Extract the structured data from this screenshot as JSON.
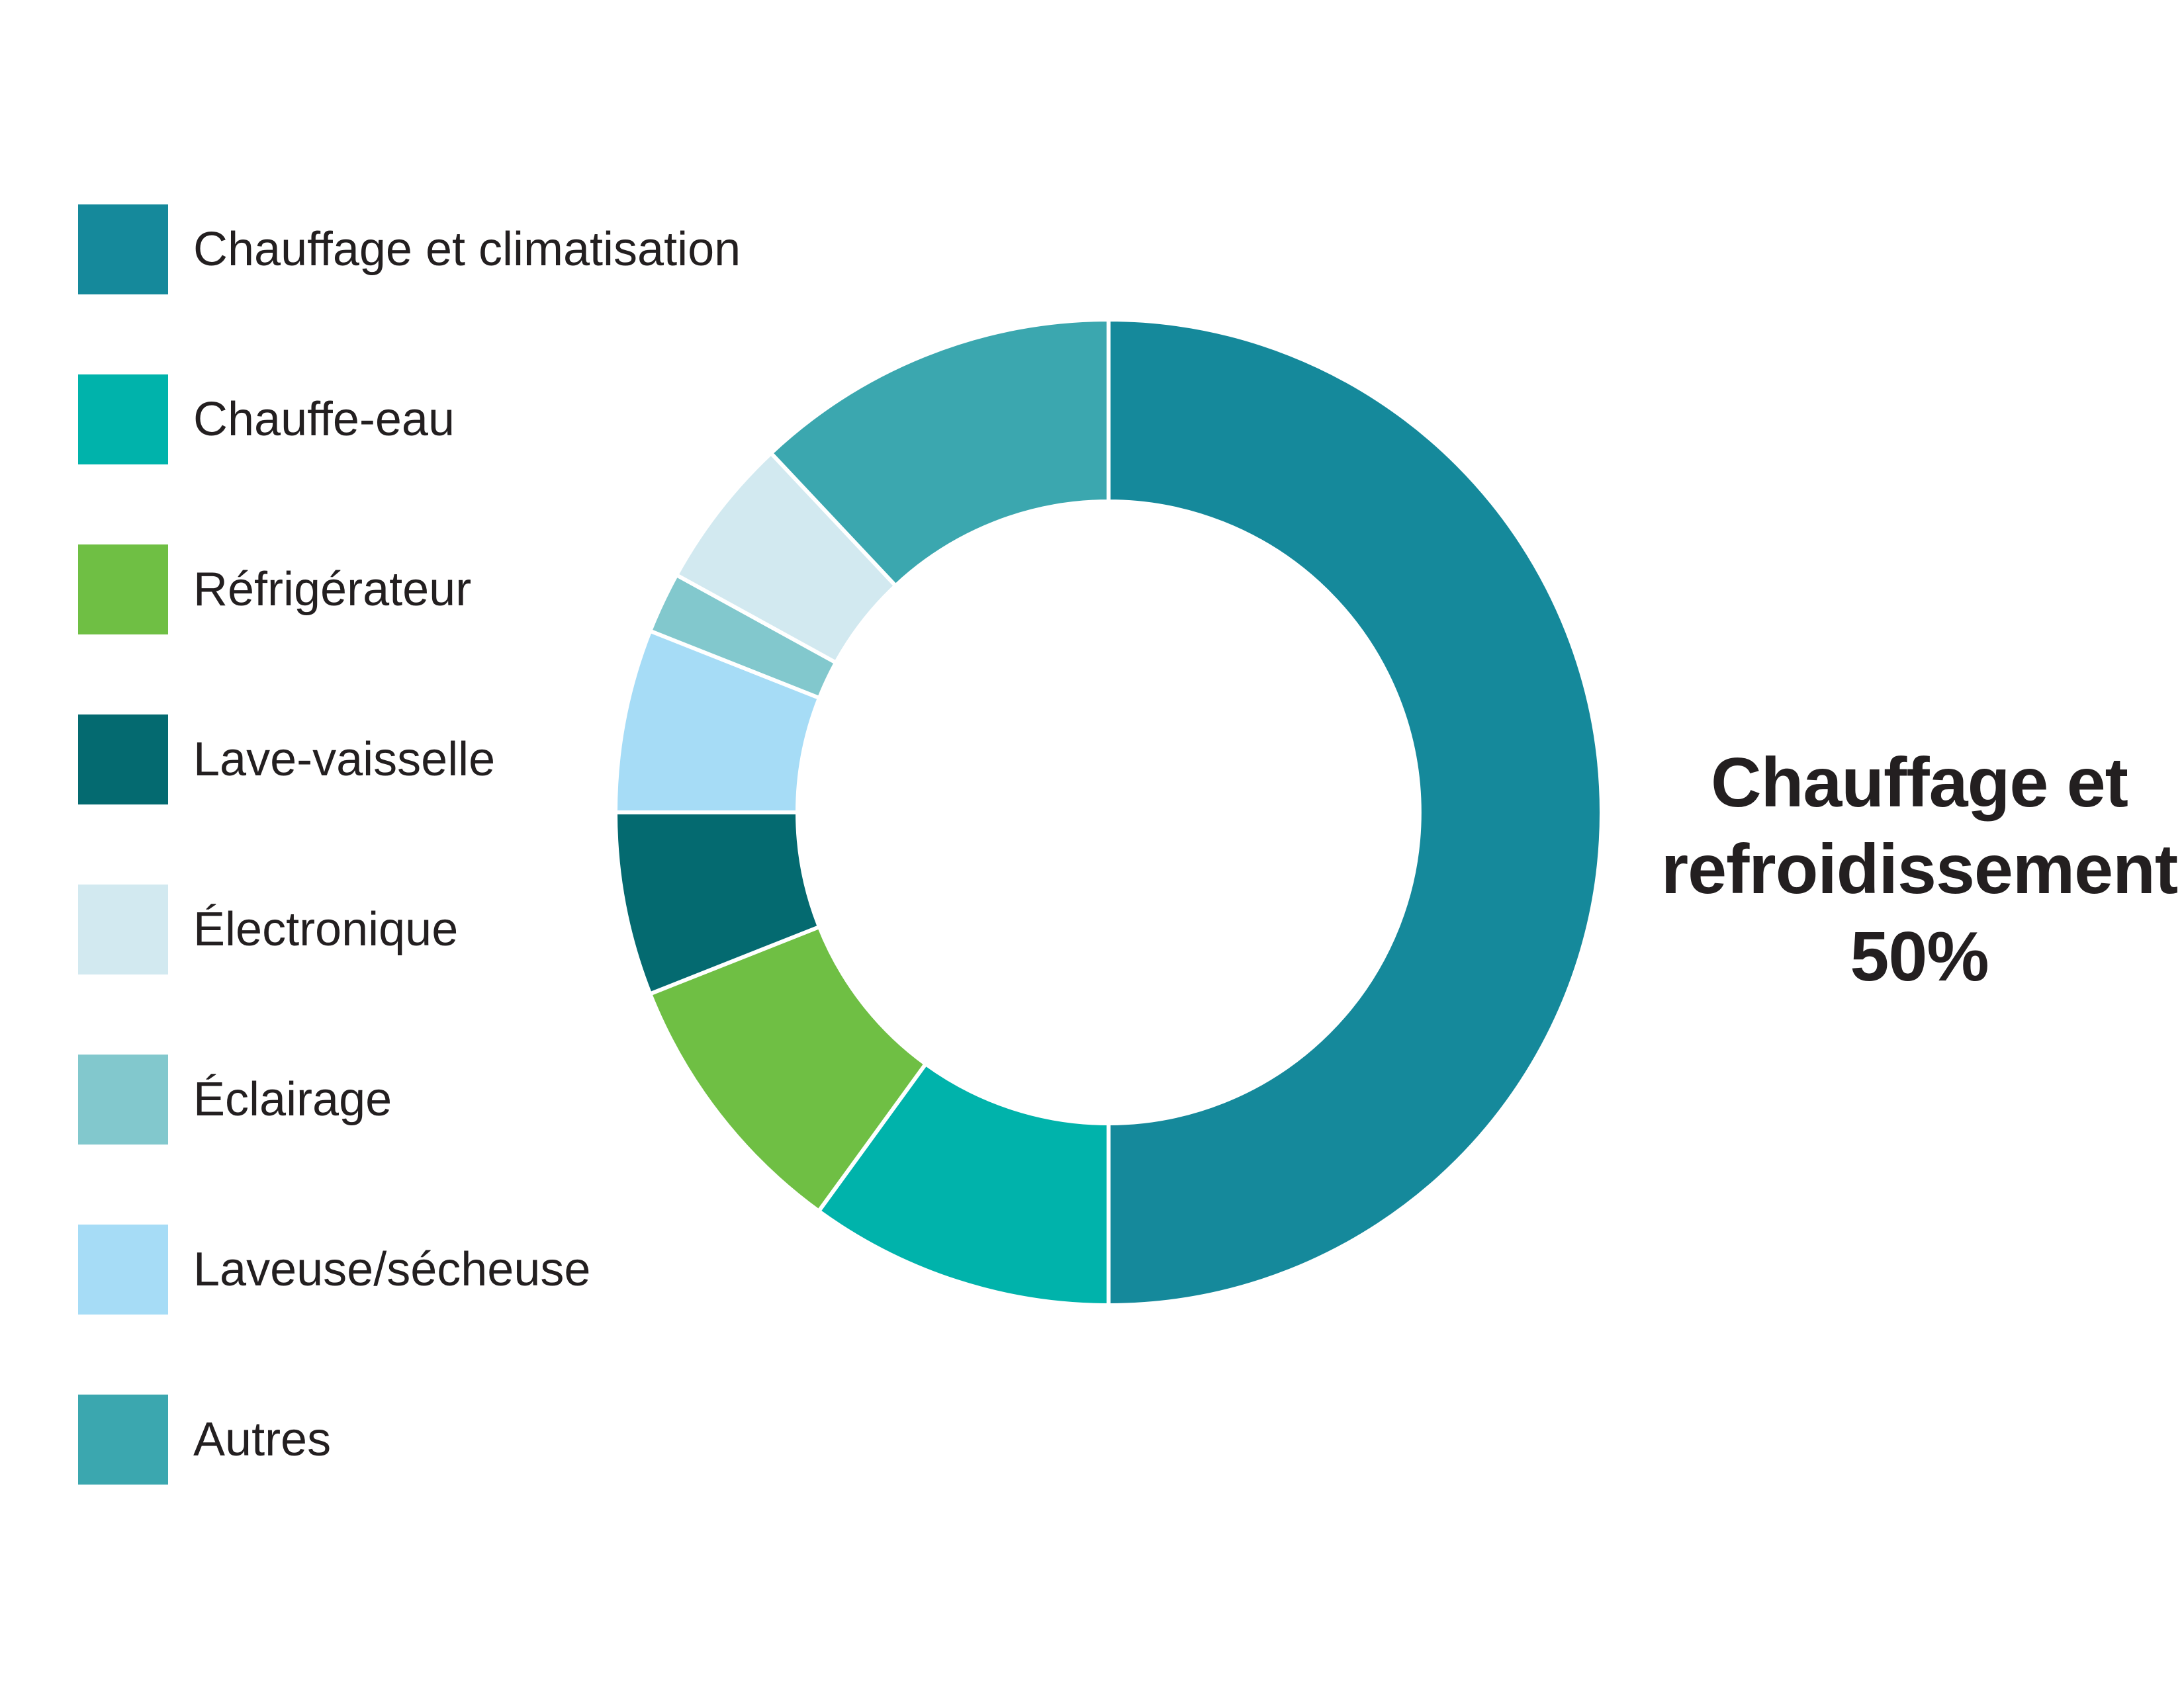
{
  "page": {
    "background": "#ffffff",
    "text_color": "#231f20"
  },
  "chart_data": {
    "type": "pie",
    "subtype": "donut",
    "unit": "%",
    "legend_position": "left",
    "grid": false,
    "hole_ratio": 0.631,
    "separator_color": "#ffffff",
    "categories": [
      "Chauffage et climatisation",
      "Chauffe-eau",
      "Réfrigérateur",
      "Lave-vaisselle",
      "Électronique",
      "Éclairage",
      "Laveuse/sécheuse",
      "Autres"
    ],
    "values": [
      50,
      10,
      9,
      6,
      5,
      2,
      6,
      12
    ],
    "colors": [
      "#15899b",
      "#00b3ab",
      "#6fbf44",
      "#046a70",
      "#d2e9f0",
      "#82c8cd",
      "#a6dcf6",
      "#3ba7af"
    ],
    "slices_clockwise_from_top": [
      {
        "label": "Chauffage et climatisation",
        "value": 50,
        "color": "#15899b"
      },
      {
        "label": "Chauffe-eau",
        "value": 10,
        "color": "#00b3ab"
      },
      {
        "label": "Réfrigérateur",
        "value": 9,
        "color": "#6fbf44"
      },
      {
        "label": "Lave-vaisselle",
        "value": 6,
        "color": "#046a70"
      },
      {
        "label": "Laveuse/sécheuse",
        "value": 6,
        "color": "#a6dcf6"
      },
      {
        "label": "Éclairage",
        "value": 2,
        "color": "#82c8cd"
      },
      {
        "label": "Électronique",
        "value": 5,
        "color": "#d2e9f0"
      },
      {
        "label": "Autres",
        "value": 12,
        "color": "#3ba7af"
      }
    ],
    "annotation": "Chauffage et refroidissement 50%"
  },
  "legend": {
    "items": [
      {
        "label": "Chauffage et climatisation",
        "color": "#15899b"
      },
      {
        "label": "Chauffe-eau",
        "color": "#00b3ab"
      },
      {
        "label": "Réfrigérateur",
        "color": "#6fbf44"
      },
      {
        "label": "Lave-vaisselle",
        "color": "#046a70"
      },
      {
        "label": "Électronique",
        "color": "#d2e9f0"
      },
      {
        "label": "Éclairage",
        "color": "#82c8cd"
      },
      {
        "label": "Laveuse/sécheuse",
        "color": "#a6dcf6"
      },
      {
        "label": "Autres",
        "color": "#3ba7af"
      }
    ]
  },
  "callout": {
    "line1": "Chauffage et",
    "line2": "refroidissement",
    "line3": "50%"
  }
}
